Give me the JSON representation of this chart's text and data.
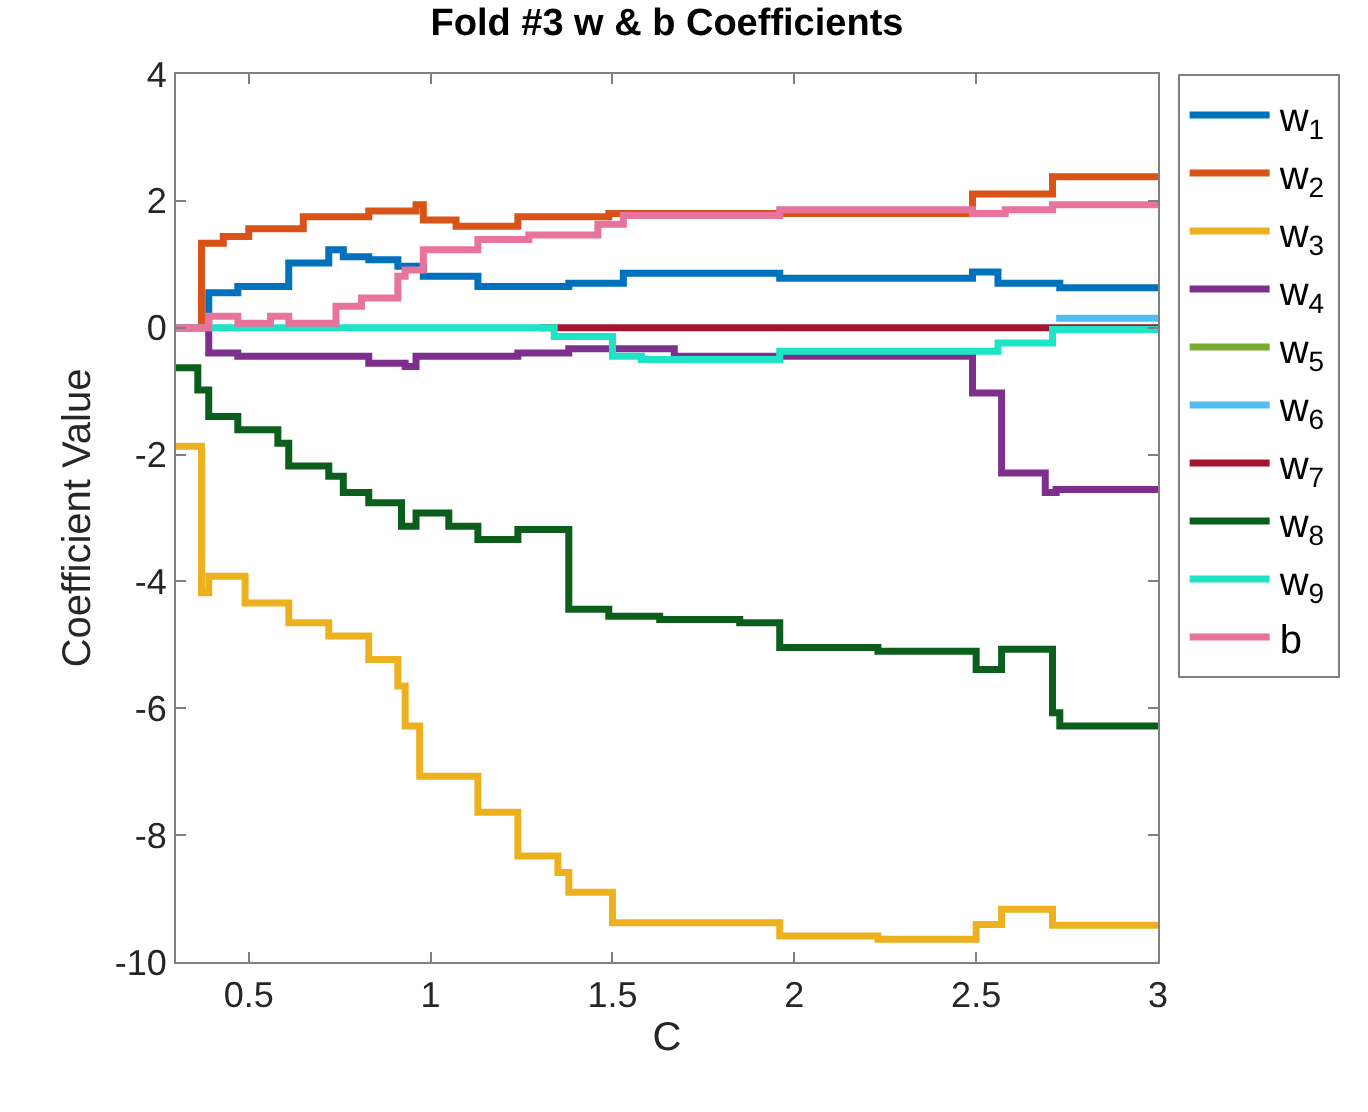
{
  "chart_data": {
    "type": "step",
    "title": "Fold #3 w & b Coefficients",
    "xlabel": "C",
    "ylabel": "Coefficient Value",
    "xlim": [
      0.3,
      3
    ],
    "xticks": [
      0.5,
      1,
      1.5,
      2,
      2.5,
      3
    ],
    "ylim": [
      -10,
      4
    ],
    "yticks": [
      -10,
      -8,
      -6,
      -4,
      -2,
      0,
      2,
      4
    ],
    "grid": false,
    "legend": "right",
    "marker": "none",
    "line_style": "solid",
    "series": [
      {
        "name": "w$_{1}$",
        "color": "#0072bd",
        "x": [
          0.3,
          0.39,
          0.47,
          0.61,
          0.72,
          0.76,
          0.83,
          0.91,
          0.98,
          1.13,
          1.38,
          1.53,
          1.96,
          2.49,
          2.56,
          2.73,
          3
        ],
        "values": [
          0,
          0.55,
          0.65,
          1.02,
          1.23,
          1.12,
          1.07,
          0.97,
          0.81,
          0.65,
          0.7,
          0.86,
          0.78,
          0.88,
          0.7,
          0.63,
          0.63
        ]
      },
      {
        "name": "w$_{2}$",
        "color": "#d95319",
        "x": [
          0.3,
          0.37,
          0.43,
          0.5,
          0.65,
          0.83,
          0.96,
          0.98,
          1.07,
          1.24,
          1.49,
          2.49,
          2.71,
          3
        ],
        "values": [
          0,
          1.33,
          1.44,
          1.56,
          1.75,
          1.84,
          1.94,
          1.7,
          1.6,
          1.75,
          1.8,
          2.11,
          2.38,
          2.38
        ]
      },
      {
        "name": "w$_{3}$",
        "color": "#edb120",
        "x": [
          0.3,
          0.37,
          0.39,
          0.49,
          0.61,
          0.72,
          0.83,
          0.91,
          0.93,
          0.97,
          1.13,
          1.24,
          1.35,
          1.38,
          1.5,
          1.96,
          2.23,
          2.5,
          2.57,
          2.71,
          3
        ],
        "values": [
          -1.87,
          -4.18,
          -3.92,
          -4.34,
          -4.65,
          -4.86,
          -5.23,
          -5.65,
          -6.28,
          -7.07,
          -7.64,
          -8.33,
          -8.59,
          -8.9,
          -9.38,
          -9.59,
          -9.64,
          -9.41,
          -9.17,
          -9.42,
          -9.42
        ]
      },
      {
        "name": "w$_{4}$",
        "color": "#7e2f8e",
        "x": [
          0.3,
          0.39,
          0.47,
          0.83,
          0.93,
          0.96,
          1.24,
          1.38,
          1.67,
          2.49,
          2.57,
          2.69,
          2.72,
          3
        ],
        "values": [
          0,
          -0.4,
          -0.45,
          -0.56,
          -0.61,
          -0.45,
          -0.4,
          -0.33,
          -0.45,
          -1.03,
          -2.29,
          -2.6,
          -2.55,
          -2.55
        ]
      },
      {
        "name": "w$_{5}$",
        "color": "#77ac30"
      },
      {
        "name": "w$_{6}$",
        "color": "#4dbeee",
        "x": [
          2.72,
          3
        ],
        "values": [
          0.15,
          0.15
        ]
      },
      {
        "name": "w$_{7}$",
        "color": "#a2142f",
        "x": [
          1.3,
          3
        ],
        "values": [
          0,
          0
        ]
      },
      {
        "name": "w$_{8}$",
        "color": "#0b5e1c",
        "x": [
          0.3,
          0.36,
          0.39,
          0.47,
          0.58,
          0.61,
          0.72,
          0.76,
          0.83,
          0.92,
          0.96,
          1.05,
          1.13,
          1.24,
          1.38,
          1.49,
          1.63,
          1.85,
          1.96,
          2.23,
          2.5,
          2.57,
          2.71,
          2.73,
          3
        ],
        "values": [
          -0.63,
          -0.98,
          -1.4,
          -1.61,
          -1.82,
          -2.18,
          -2.34,
          -2.6,
          -2.76,
          -3.13,
          -2.92,
          -3.13,
          -3.34,
          -3.18,
          -4.44,
          -4.55,
          -4.6,
          -4.65,
          -5.04,
          -5.1,
          -5.39,
          -5.07,
          -6.07,
          -6.28,
          -6.28
        ]
      },
      {
        "name": "w$_{9}$",
        "color": "#1de4c4",
        "x": [
          0.3,
          1.34,
          1.5,
          1.58,
          1.96,
          2.56,
          2.71,
          3
        ],
        "values": [
          0,
          -0.14,
          -0.45,
          -0.5,
          -0.37,
          -0.24,
          -0.03,
          -0.03
        ]
      },
      {
        "name": "b",
        "color": "#e8739c",
        "x": [
          0.3,
          0.39,
          0.47,
          0.56,
          0.61,
          0.74,
          0.81,
          0.91,
          0.93,
          0.98,
          1.13,
          1.27,
          1.46,
          1.53,
          1.96,
          2.49,
          2.58,
          2.71,
          3
        ],
        "values": [
          0,
          0.18,
          0.07,
          0.18,
          0.07,
          0.34,
          0.47,
          0.81,
          0.91,
          1.23,
          1.39,
          1.46,
          1.63,
          1.77,
          1.86,
          1.8,
          1.86,
          1.94,
          1.94
        ]
      }
    ]
  }
}
